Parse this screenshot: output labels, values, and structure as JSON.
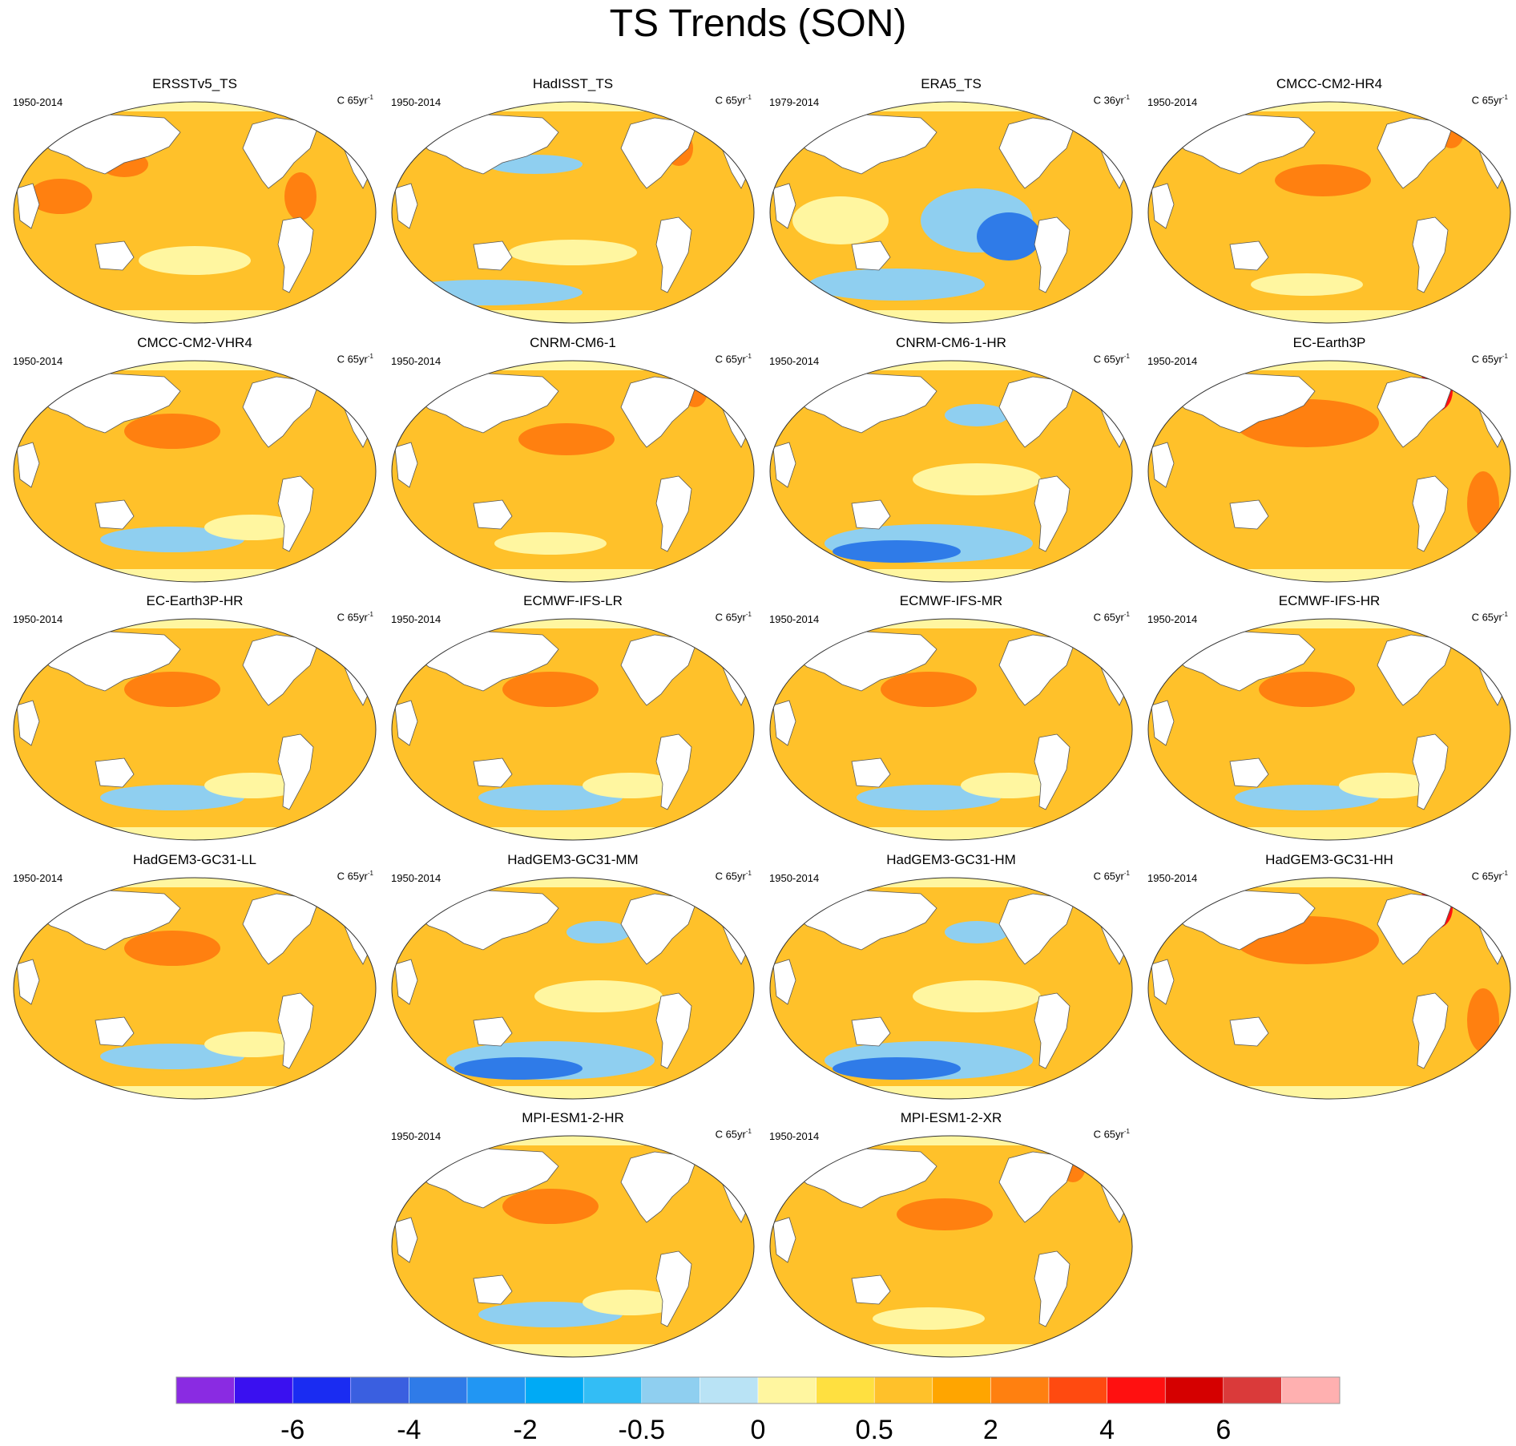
{
  "title": "TS Trends (SON)",
  "panels": [
    {
      "name": "ERSSTv5_TS",
      "period": "1950-2014",
      "units": "C 65yr",
      "units_sup": "-1",
      "style": "obs_ersst"
    },
    {
      "name": "HadISST_TS",
      "period": "1950-2014",
      "units": "C 65yr",
      "units_sup": "-1",
      "style": "obs_hadisst"
    },
    {
      "name": "ERA5_TS",
      "period": "1979-2014",
      "units": "C 36yr",
      "units_sup": "-1",
      "style": "era5"
    },
    {
      "name": "CMCC-CM2-HR4",
      "period": "1950-2014",
      "units": "C 65yr",
      "units_sup": "-1",
      "style": "warm"
    },
    {
      "name": "CMCC-CM2-VHR4",
      "period": "1950-2014",
      "units": "C 65yr",
      "units_sup": "-1",
      "style": "warm_south"
    },
    {
      "name": "CNRM-CM6-1",
      "period": "1950-2014",
      "units": "C 65yr",
      "units_sup": "-1",
      "style": "warm"
    },
    {
      "name": "CNRM-CM6-1-HR",
      "period": "1950-2014",
      "units": "C 65yr",
      "units_sup": "-1",
      "style": "cool_south"
    },
    {
      "name": "EC-Earth3P",
      "period": "1950-2014",
      "units": "C 65yr",
      "units_sup": "-1",
      "style": "hot"
    },
    {
      "name": "EC-Earth3P-HR",
      "period": "1950-2014",
      "units": "C 65yr",
      "units_sup": "-1",
      "style": "warm_south"
    },
    {
      "name": "ECMWF-IFS-LR",
      "period": "1950-2014",
      "units": "C 65yr",
      "units_sup": "-1",
      "style": "warm_south"
    },
    {
      "name": "ECMWF-IFS-MR",
      "period": "1950-2014",
      "units": "C 65yr",
      "units_sup": "-1",
      "style": "warm_south"
    },
    {
      "name": "ECMWF-IFS-HR",
      "period": "1950-2014",
      "units": "C 65yr",
      "units_sup": "-1",
      "style": "warm_south"
    },
    {
      "name": "HadGEM3-GC31-LL",
      "period": "1950-2014",
      "units": "C 65yr",
      "units_sup": "-1",
      "style": "warm_south"
    },
    {
      "name": "HadGEM3-GC31-MM",
      "period": "1950-2014",
      "units": "C 65yr",
      "units_sup": "-1",
      "style": "cool_south"
    },
    {
      "name": "HadGEM3-GC31-HM",
      "period": "1950-2014",
      "units": "C 65yr",
      "units_sup": "-1",
      "style": "cool_south"
    },
    {
      "name": "HadGEM3-GC31-HH",
      "period": "1950-2014",
      "units": "C 65yr",
      "units_sup": "-1",
      "style": "hot"
    },
    {
      "name": "MPI-ESM1-2-HR",
      "period": "1950-2014",
      "units": "C 65yr",
      "units_sup": "-1",
      "style": "warm_south"
    },
    {
      "name": "MPI-ESM1-2-XR",
      "period": "1950-2014",
      "units": "C 65yr",
      "units_sup": "-1",
      "style": "warm"
    }
  ],
  "colorbar": {
    "colors": [
      "#8a2be2",
      "#3a10f0",
      "#1a2cf2",
      "#3a5fe0",
      "#2f7be8",
      "#2196f3",
      "#00aaf5",
      "#33bdf5",
      "#8fcff0",
      "#b9e3f5",
      "#fff6a0",
      "#ffe040",
      "#ffc12a",
      "#ffa500",
      "#ff8010",
      "#ff4a10",
      "#ff1010",
      "#d50000",
      "#da3a3a",
      "#ffb0b0"
    ],
    "labels": [
      "-6",
      "-4",
      "-2",
      "-0.5",
      "0",
      "0.5",
      "2",
      "4",
      "6"
    ]
  },
  "palette": {
    "ocean_base": "#ffc12a",
    "warm": "#ffa500",
    "warmer": "#ff8010",
    "hot": "#ff1010",
    "pale": "#fff6a0",
    "cool": "#8fcff0",
    "cold": "#2f7be8",
    "land": "#ffffff",
    "outline": "#555555"
  }
}
